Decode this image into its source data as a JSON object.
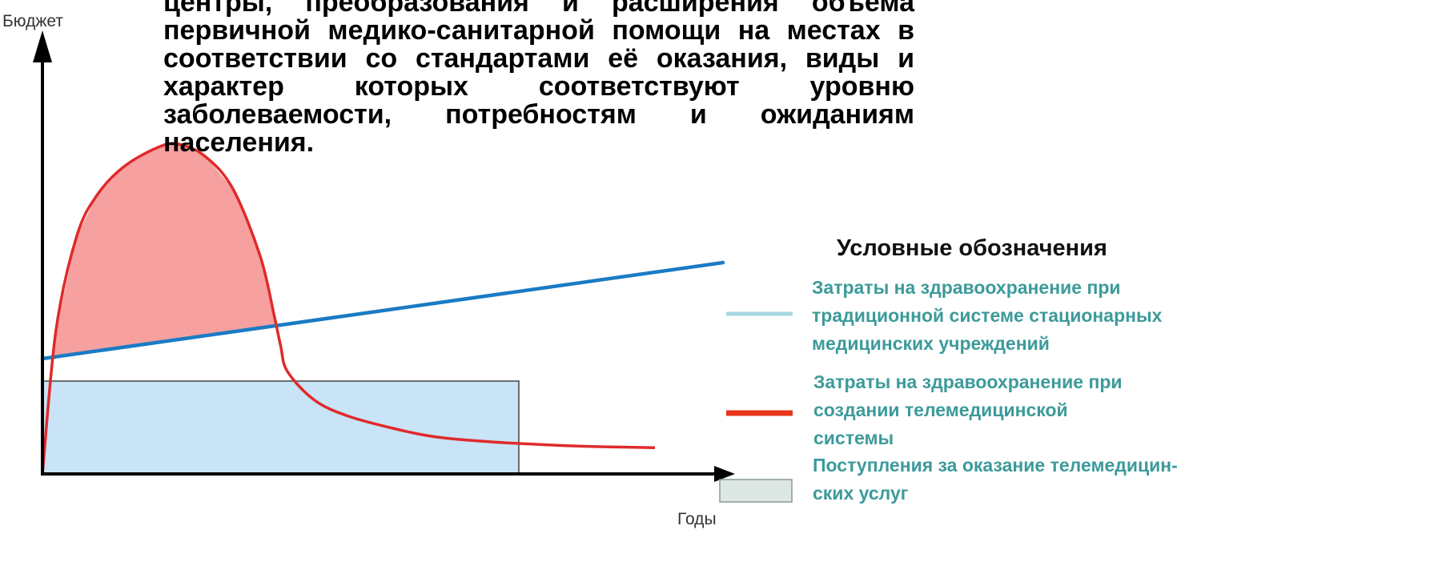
{
  "heading": "центры, преобразования и расширения объема первичной медико-санитарной помощи на местах в соответствии со стандартами её оказания, виды и характер которых соответствуют уровню заболеваемости, потребностям и ожиданиям населения.",
  "colors": {
    "traditional_line": "#1a7bc4",
    "telemedicine_line": "#e02a2a",
    "telemedicine_fill": "#f7a0a0",
    "revenue_fill": "#c8e4f6",
    "legend_text": "#3d9a9a",
    "legend_traditional_swatch": "#a6d8e0",
    "legend_telemedicine_swatch": "#e8361a",
    "legend_revenue_swatch": "#dde7e4"
  },
  "legend": {
    "title": "Условные обозначения",
    "items": [
      {
        "text": "Затраты на здравоохранение при\nтрадиционной системе стационарных\nмедицинских учреждений"
      },
      {
        "text": "Затраты на здравоохранение при\nсоздании телемедицинской\nсистемы"
      },
      {
        "text": "Поступления за оказание телемедицин-\nских услуг"
      }
    ]
  },
  "chart_data": {
    "type": "line",
    "ylabel": "Бюджет",
    "xlabel": "Годы",
    "xlim": [
      0,
      100
    ],
    "ylim": [
      0,
      100
    ],
    "grid": false,
    "legend_position": "right",
    "series": [
      {
        "name": "Затраты на здравоохранение при традиционной системе стационарных медицинских учреждений",
        "kind": "line",
        "x": [
          0,
          100
        ],
        "y": [
          36,
          66
        ]
      },
      {
        "name": "Затраты на здравоохранение при создании телемедицинской системы",
        "kind": "line",
        "x": [
          0,
          2,
          5,
          8,
          12,
          17,
          20,
          24,
          28,
          32,
          34,
          35,
          36,
          40,
          45,
          52,
          58,
          66,
          75,
          82,
          90
        ],
        "y": [
          0,
          45,
          74,
          87,
          96,
          102,
          103,
          99,
          89,
          68,
          50,
          40,
          32,
          23,
          18,
          14,
          11.5,
          10,
          9,
          8.5,
          8.2
        ]
      },
      {
        "name": "Поступления за оказание телемедицинских услуг",
        "kind": "area",
        "x": [
          0,
          70
        ],
        "y": [
          29,
          29
        ]
      }
    ]
  }
}
